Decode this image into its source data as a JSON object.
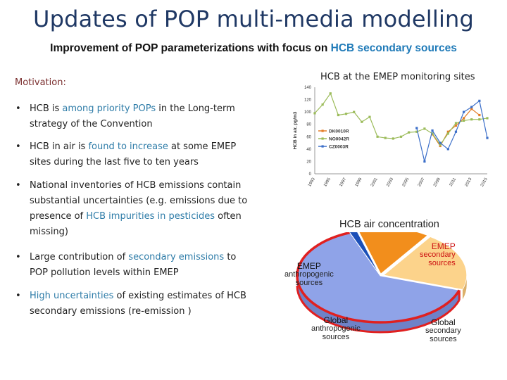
{
  "slide": {
    "title": "Updates of POP multi-media modelling",
    "subtitle": {
      "prefix": "Improvement of POP parameterizations with focus on ",
      "highlight": "HCB secondary sources"
    },
    "motivation_label": "Motivation:",
    "bullets": [
      {
        "bullet": "•",
        "parts": [
          "HCB is ",
          "among priority POPs",
          " in the Long-term strategy of the Convention"
        ]
      },
      {
        "bullet": "•",
        "parts": [
          "HCB in air is ",
          "found to increase",
          " at some EMEP sites during the last five to ten years"
        ]
      },
      {
        "bullet": "•",
        "parts": [
          "National inventories of HCB emissions contain substantial uncertainties (e.g. emissions due to presence of ",
          "HCB impurities in pesticides",
          " often missing)"
        ]
      },
      {
        "bullet": "•",
        "parts": [
          "Large  contribution of ",
          "secondary emissions",
          " to POP pollution levels within EMEP"
        ]
      },
      {
        "bullet": "•",
        "parts": [
          "",
          "High uncertainties",
          " of existing estimates of HCB secondary emissions (re-emission )"
        ]
      }
    ]
  },
  "chart_data": [
    {
      "type": "line",
      "title": "HCB at the EMEP monitoring sites",
      "ylabel": "HCB in air, pg/m3",
      "xlabel": "",
      "ylim": [
        0,
        140
      ],
      "yticks": [
        0,
        20,
        40,
        60,
        80,
        100,
        120,
        140
      ],
      "xlim": [
        1993,
        2015
      ],
      "xticks": [
        1993,
        1995,
        1997,
        1999,
        2001,
        2003,
        2005,
        2007,
        2009,
        2011,
        2013,
        2015
      ],
      "grid": false,
      "legend": "left",
      "series": [
        {
          "name": "DK0010R",
          "color": "#e47d27",
          "x": [
            2008,
            2009,
            2010,
            2011,
            2012,
            2013,
            2014
          ],
          "y": [
            64,
            45,
            68,
            78,
            90,
            105,
            95
          ]
        },
        {
          "name": "NO0042R",
          "color": "#9bbb59",
          "x": [
            1993,
            1994,
            1995,
            1996,
            1997,
            1998,
            1999,
            2000,
            2001,
            2002,
            2003,
            2004,
            2005,
            2006,
            2007,
            2008,
            2009,
            2010,
            2011,
            2012,
            2013,
            2014,
            2015
          ],
          "y": [
            98,
            112,
            130,
            95,
            97,
            100,
            84,
            92,
            60,
            58,
            57,
            60,
            67,
            68,
            73,
            65,
            47,
            65,
            82,
            86,
            88,
            88,
            90
          ]
        },
        {
          "name": "CZ0003R",
          "color": "#3c6fc9",
          "x": [
            2006,
            2007,
            2008,
            2009,
            2010,
            2011,
            2012,
            2013,
            2014,
            2015
          ],
          "y": [
            74,
            20,
            70,
            50,
            40,
            68,
            100,
            108,
            118,
            58
          ]
        }
      ]
    },
    {
      "type": "pie",
      "title": "HCB air concentration",
      "slices": [
        {
          "name": "EMEP secondary sources",
          "value": 64,
          "color": "#8fa3e8"
        },
        {
          "name": "EMEP anthropogenic sources",
          "value": 1.5,
          "color": "#1b4fb8"
        },
        {
          "name": "Global anthropogenic sources",
          "value": 14,
          "color": "#f28e1c"
        },
        {
          "name": "Global secondary sources",
          "value": 20.5,
          "color": "#fcd38b"
        }
      ],
      "labels": [
        {
          "lines": [
            "EMEP",
            "secondary",
            "sources"
          ],
          "colors": [
            "#cc1111",
            "#cc1111",
            "#cc1111"
          ]
        },
        {
          "lines": [
            "EMEP",
            "anthropogenic",
            "sources"
          ],
          "colors": [
            "#111111",
            "#222222",
            "#222222"
          ]
        },
        {
          "lines": [
            "Global",
            "anthropogenic",
            "sources"
          ],
          "colors": [
            "#111111",
            "#222222",
            "#222222"
          ]
        },
        {
          "lines": [
            "Global",
            "secondary",
            "sources"
          ],
          "colors": [
            "#111111",
            "#222222",
            "#222222"
          ]
        }
      ]
    }
  ]
}
